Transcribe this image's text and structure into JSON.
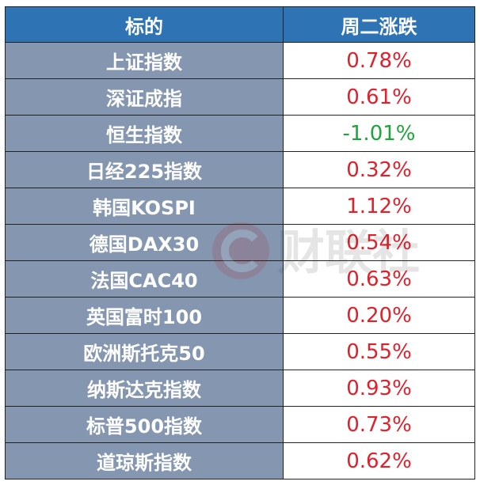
{
  "header": {
    "col_name": "标的",
    "col_change": "周二涨跌"
  },
  "rows": [
    {
      "name": "上证指数",
      "change": "0.78%",
      "direction": "up"
    },
    {
      "name": "深证成指",
      "change": "0.61%",
      "direction": "up"
    },
    {
      "name": "恒生指数",
      "change": "-1.01%",
      "direction": "down"
    },
    {
      "name": "日经225指数",
      "change": "0.32%",
      "direction": "up"
    },
    {
      "name": "韩国KOSPI",
      "change": "1.12%",
      "direction": "up"
    },
    {
      "name": "德国DAX30",
      "change": "0.54%",
      "direction": "up"
    },
    {
      "name": "法国CAC40",
      "change": "0.63%",
      "direction": "up"
    },
    {
      "name": "英国富时100",
      "change": "0.20%",
      "direction": "up"
    },
    {
      "name": "欧洲斯托克50",
      "change": "0.55%",
      "direction": "up"
    },
    {
      "name": "纳斯达克指数",
      "change": "0.93%",
      "direction": "up"
    },
    {
      "name": "标普500指数",
      "change": "0.73%",
      "direction": "up"
    },
    {
      "name": "道琼斯指数",
      "change": "0.62%",
      "direction": "up"
    }
  ],
  "watermark": {
    "text": "财联社",
    "icon": "cls-logo-icon"
  },
  "colors": {
    "header_bg": "#2e74b5",
    "name_bg": "#8496b0",
    "up": "#e0202a",
    "down": "#1fa43a"
  }
}
